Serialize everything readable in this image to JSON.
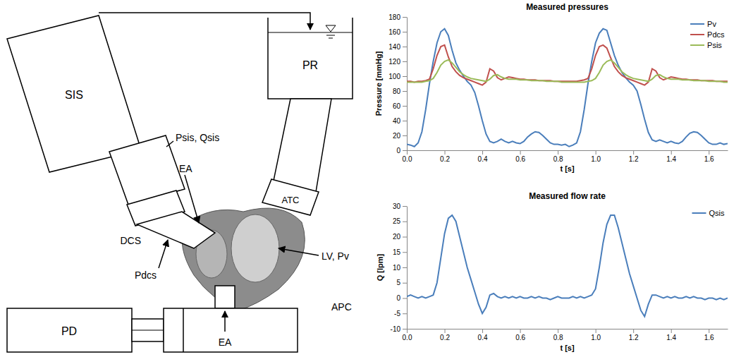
{
  "diagram": {
    "nodes": [
      {
        "label": "SIS"
      },
      {
        "label": "PR"
      },
      {
        "label": "Psis, Qsis"
      },
      {
        "label": "EA"
      },
      {
        "label": "DCS"
      },
      {
        "label": "Pdcs"
      },
      {
        "label": "ATC"
      },
      {
        "label": "LV, Pv"
      },
      {
        "label": "APC"
      },
      {
        "label": "PD"
      },
      {
        "label": "EA"
      }
    ]
  },
  "chart_data": [
    {
      "type": "line",
      "title": "Measured pressures",
      "x_label": "t [s]",
      "y_label": "Pressure [mmHg]",
      "x": [
        0,
        0.02,
        0.04,
        0.06,
        0.08,
        0.1,
        0.12,
        0.14,
        0.16,
        0.18,
        0.2,
        0.22,
        0.24,
        0.26,
        0.28,
        0.3,
        0.32,
        0.34,
        0.36,
        0.38,
        0.4,
        0.42,
        0.44,
        0.46,
        0.48,
        0.5,
        0.52,
        0.54,
        0.56,
        0.58,
        0.6,
        0.62,
        0.64,
        0.66,
        0.68,
        0.7,
        0.72,
        0.74,
        0.76,
        0.78,
        0.8,
        0.82,
        0.84,
        0.86,
        0.88,
        0.9,
        0.92,
        0.94,
        0.96,
        0.98,
        1,
        1.02,
        1.04,
        1.06,
        1.08,
        1.1,
        1.12,
        1.14,
        1.16,
        1.18,
        1.2,
        1.22,
        1.24,
        1.26,
        1.28,
        1.3,
        1.32,
        1.34,
        1.36,
        1.38,
        1.4,
        1.42,
        1.44,
        1.46,
        1.48,
        1.5,
        1.52,
        1.54,
        1.56,
        1.58,
        1.6,
        1.62,
        1.64,
        1.66,
        1.68,
        1.7
      ],
      "series": [
        {
          "name": "Pv",
          "color": "#4a7ebb",
          "values": [
            8,
            7,
            5,
            10,
            25,
            55,
            90,
            120,
            145,
            160,
            164,
            155,
            135,
            118,
            108,
            100,
            93,
            88,
            78,
            60,
            40,
            22,
            12,
            10,
            12,
            15,
            12,
            10,
            12,
            10,
            9,
            12,
            18,
            22,
            25,
            24,
            20,
            15,
            10,
            8,
            8,
            7,
            8,
            5,
            7,
            10,
            25,
            55,
            90,
            120,
            145,
            158,
            164,
            162,
            145,
            128,
            115,
            105,
            98,
            92,
            88,
            80,
            62,
            42,
            24,
            14,
            12,
            14,
            12,
            10,
            12,
            10,
            9,
            12,
            18,
            23,
            25,
            24,
            20,
            15,
            10,
            8,
            8,
            10,
            8,
            9
          ]
        },
        {
          "name": "Pdcs",
          "color": "#c0504d",
          "values": [
            93,
            93,
            92,
            93,
            93,
            94,
            96,
            110,
            128,
            140,
            142,
            126,
            113,
            106,
            101,
            98,
            96,
            94,
            92,
            90,
            88,
            92,
            110,
            107,
            98,
            95,
            97,
            99,
            98,
            97,
            96,
            96,
            95,
            95,
            95,
            94,
            94,
            94,
            94,
            93,
            93,
            93,
            93,
            93,
            93,
            93,
            94,
            95,
            97,
            110,
            128,
            140,
            142,
            138,
            125,
            113,
            106,
            101,
            98,
            96,
            94,
            92,
            90,
            88,
            92,
            110,
            107,
            98,
            95,
            97,
            99,
            98,
            97,
            96,
            96,
            95,
            95,
            95,
            94,
            94,
            94,
            94,
            93,
            93,
            93,
            93
          ]
        },
        {
          "name": "Psis",
          "color": "#9bbb59",
          "values": [
            92,
            92,
            92,
            92,
            92,
            93,
            94,
            97,
            105,
            115,
            120,
            122,
            118,
            112,
            106,
            102,
            99,
            97,
            96,
            95,
            94,
            93,
            96,
            101,
            102,
            99,
            97,
            96,
            96,
            96,
            95,
            95,
            95,
            94,
            94,
            94,
            94,
            93,
            93,
            93,
            93,
            92,
            92,
            92,
            92,
            92,
            92,
            92,
            93,
            94,
            97,
            105,
            115,
            120,
            122,
            118,
            112,
            106,
            102,
            99,
            97,
            96,
            95,
            94,
            93,
            96,
            101,
            102,
            99,
            97,
            96,
            96,
            96,
            95,
            95,
            95,
            94,
            94,
            94,
            94,
            93,
            93,
            93,
            93,
            92,
            92
          ]
        }
      ],
      "xlim": [
        0,
        1.7
      ],
      "xticks": [
        {
          "value": 0,
          "label": "0.0"
        },
        {
          "value": 0.2,
          "label": "0.2"
        },
        {
          "value": 0.4,
          "label": "0.4"
        },
        {
          "value": 0.6,
          "label": "0.6"
        },
        {
          "value": 0.8,
          "label": "0.8"
        },
        {
          "value": 1,
          "label": "1.0"
        },
        {
          "value": 1.2,
          "label": "1.2"
        },
        {
          "value": 1.4,
          "label": "1.4"
        },
        {
          "value": 1.6,
          "label": "1.6"
        }
      ],
      "ylim": [
        0,
        180
      ],
      "yticks": [
        0,
        20,
        40,
        60,
        80,
        100,
        120,
        140,
        160,
        180
      ],
      "grid": false,
      "legend": "top-right"
    },
    {
      "type": "line",
      "title": "Measured flow rate",
      "x_label": "t [s]",
      "y_label": "Q [lpm]",
      "x": [
        0,
        0.02,
        0.04,
        0.06,
        0.08,
        0.1,
        0.12,
        0.14,
        0.16,
        0.18,
        0.2,
        0.22,
        0.24,
        0.26,
        0.28,
        0.3,
        0.32,
        0.34,
        0.36,
        0.38,
        0.4,
        0.42,
        0.44,
        0.46,
        0.48,
        0.5,
        0.52,
        0.54,
        0.56,
        0.58,
        0.6,
        0.62,
        0.64,
        0.66,
        0.68,
        0.7,
        0.72,
        0.74,
        0.76,
        0.78,
        0.8,
        0.82,
        0.84,
        0.86,
        0.88,
        0.9,
        0.92,
        0.94,
        0.96,
        0.98,
        1,
        1.02,
        1.04,
        1.06,
        1.08,
        1.1,
        1.12,
        1.14,
        1.16,
        1.18,
        1.2,
        1.22,
        1.24,
        1.26,
        1.28,
        1.3,
        1.32,
        1.34,
        1.36,
        1.38,
        1.4,
        1.42,
        1.44,
        1.46,
        1.48,
        1.5,
        1.52,
        1.54,
        1.56,
        1.58,
        1.6,
        1.62,
        1.64,
        1.66,
        1.68,
        1.7
      ],
      "series": [
        {
          "name": "Qsis",
          "color": "#4a7ebb",
          "values": [
            0.5,
            1,
            0.5,
            0,
            0.5,
            0,
            0.5,
            1,
            5,
            13,
            21,
            26,
            27,
            25,
            20,
            15,
            10,
            6,
            2,
            -2,
            -5,
            -3,
            1,
            1.5,
            0.5,
            0,
            0.5,
            0,
            0.5,
            0,
            0.5,
            0,
            0,
            0.5,
            0,
            0.5,
            0,
            0,
            -0.5,
            0,
            0.5,
            0,
            0,
            0,
            0.5,
            0,
            0.5,
            0,
            0.5,
            1,
            3,
            10,
            18,
            24,
            27,
            27,
            23,
            18,
            13,
            8,
            4,
            0,
            -4,
            -6,
            -2,
            1,
            1,
            0.5,
            0,
            0.5,
            0,
            0.5,
            0,
            0,
            0.5,
            0,
            0.5,
            0,
            0,
            -0.5,
            0,
            0,
            -0.5,
            0,
            -0.5,
            0
          ]
        }
      ],
      "xlim": [
        0,
        1.7
      ],
      "xticks": [
        {
          "value": 0,
          "label": "0.0"
        },
        {
          "value": 0.2,
          "label": "0.2"
        },
        {
          "value": 0.4,
          "label": "0.4"
        },
        {
          "value": 0.6,
          "label": "0.6"
        },
        {
          "value": 0.8,
          "label": "0.8"
        },
        {
          "value": 1,
          "label": "1.0"
        },
        {
          "value": 1.2,
          "label": "1.2"
        },
        {
          "value": 1.4,
          "label": "1.4"
        },
        {
          "value": 1.6,
          "label": "1.6"
        }
      ],
      "ylim": [
        -10,
        30
      ],
      "yticks": [
        -10,
        -5,
        0,
        5,
        10,
        15,
        20,
        25,
        30
      ],
      "grid": false,
      "legend": "top-right"
    }
  ]
}
